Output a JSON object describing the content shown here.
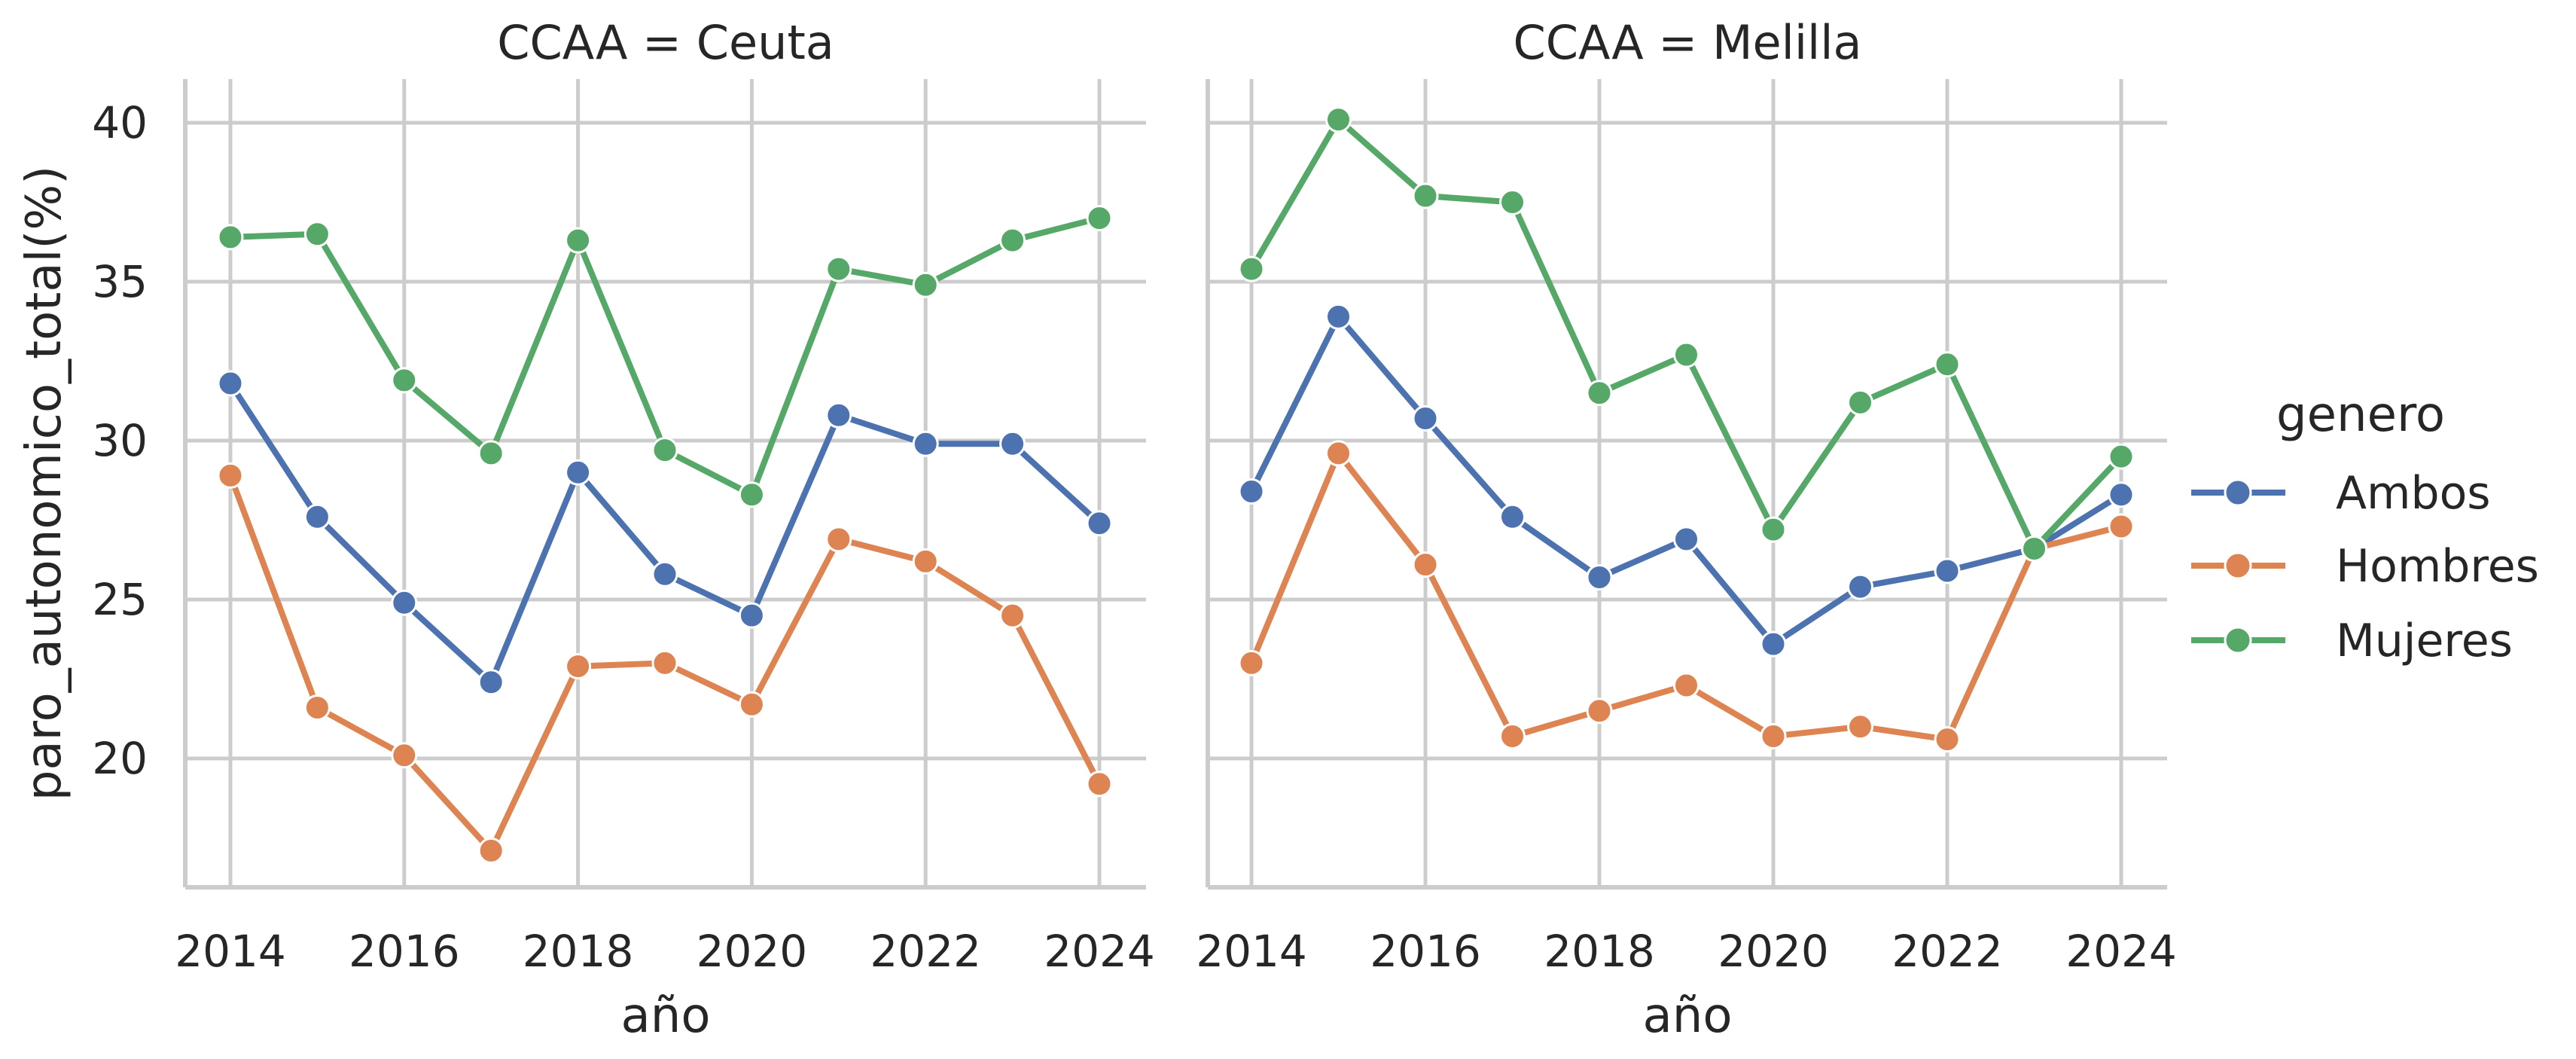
{
  "chart_data": {
    "type": "line",
    "y_label": "paro_autonomico_total(%)",
    "x_label": "año",
    "ylim": [
      15.8,
      41.3
    ],
    "y_ticks": [
      20,
      25,
      30,
      35,
      40
    ],
    "y_tick_labels": [
      "20",
      "25",
      "30",
      "35",
      "40"
    ],
    "xlim": [
      2013.5,
      2024.5
    ],
    "x_ticks": [
      2014,
      2016,
      2018,
      2020,
      2022,
      2024
    ],
    "x_tick_labels": [
      "2014",
      "2016",
      "2018",
      "2020",
      "2022",
      "2024"
    ],
    "grid": true,
    "markers": true,
    "legend": {
      "title": "genero",
      "placement": "right",
      "entries": [
        "Ambos",
        "Hombres",
        "Mujeres"
      ]
    },
    "colors": {
      "Ambos": "#4c72b0",
      "Hombres": "#dd8452",
      "Mujeres": "#55a868",
      "grid": "#cccccc",
      "axis": "#cccccc"
    },
    "x": [
      2014,
      2015,
      2016,
      2017,
      2018,
      2019,
      2020,
      2021,
      2022,
      2023,
      2024
    ],
    "panels": [
      {
        "title": "CCAA = Ceuta",
        "series": [
          {
            "name": "Ambos",
            "values": [
              31.8,
              27.6,
              24.9,
              22.4,
              29.0,
              25.8,
              24.5,
              30.8,
              29.9,
              29.9,
              27.4
            ]
          },
          {
            "name": "Hombres",
            "values": [
              28.9,
              21.6,
              20.1,
              17.1,
              22.9,
              23.0,
              21.7,
              26.9,
              26.2,
              24.5,
              19.2
            ]
          },
          {
            "name": "Mujeres",
            "values": [
              36.4,
              36.5,
              31.9,
              29.6,
              36.3,
              29.7,
              28.3,
              35.4,
              34.9,
              36.3,
              37.0
            ]
          }
        ]
      },
      {
        "title": "CCAA = Melilla",
        "series": [
          {
            "name": "Ambos",
            "values": [
              28.4,
              33.9,
              30.7,
              27.6,
              25.7,
              26.9,
              23.6,
              25.4,
              25.9,
              26.6,
              28.3
            ]
          },
          {
            "name": "Hombres",
            "values": [
              23.0,
              29.6,
              26.1,
              20.7,
              21.5,
              22.3,
              20.7,
              21.0,
              20.6,
              26.6,
              27.3
            ]
          },
          {
            "name": "Mujeres",
            "values": [
              35.4,
              40.1,
              37.7,
              37.5,
              31.5,
              32.7,
              27.2,
              31.2,
              32.4,
              26.6,
              29.5
            ]
          }
        ]
      }
    ]
  }
}
